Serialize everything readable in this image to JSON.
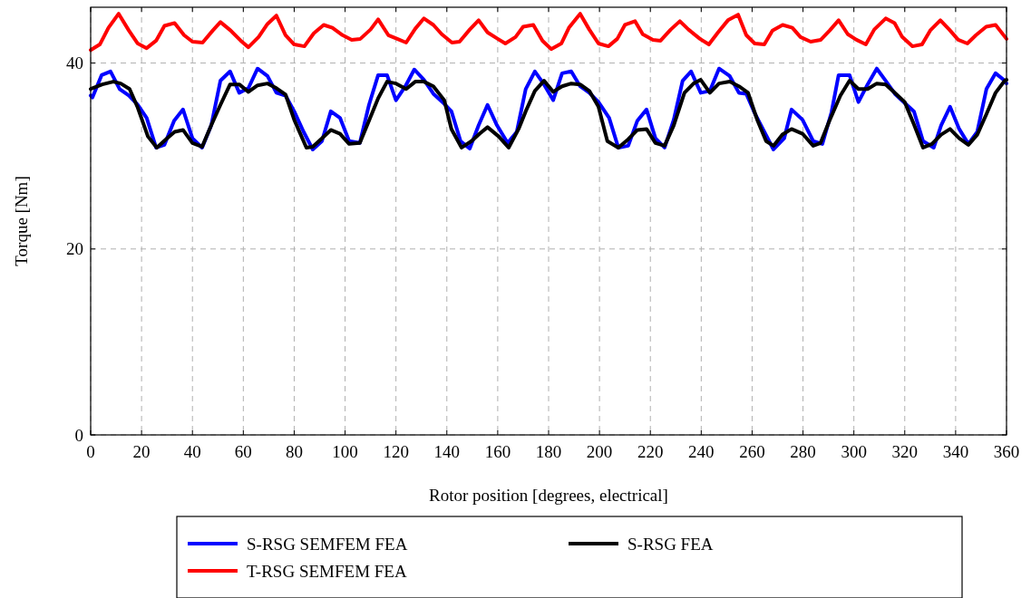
{
  "chart_data": {
    "type": "line",
    "xlabel": "Rotor position [degrees, electrical]",
    "ylabel": "Torque [Nm]",
    "xlim": [
      0,
      360
    ],
    "ylim": [
      0,
      46
    ],
    "xticks": [
      0,
      20,
      40,
      60,
      80,
      100,
      120,
      140,
      160,
      180,
      200,
      220,
      240,
      260,
      280,
      300,
      320,
      340,
      360
    ],
    "yticks": [
      0,
      20,
      40
    ],
    "grid": true,
    "legend": "bottom",
    "marker": "none",
    "line_style": "solid",
    "series": [
      {
        "name": "S-RSG SEMFEM FEA",
        "color": "#0000ff",
        "x": [
          0,
          0.7,
          4.3,
          7.8,
          11.4,
          15,
          18.5,
          22,
          25.7,
          29,
          32.8,
          36.3,
          40,
          43.8,
          47.4,
          51,
          54.8,
          58.4,
          62,
          65.6,
          69.5,
          73,
          76.6,
          80,
          83.7,
          87.3,
          90.9,
          94.4,
          98,
          101.6,
          105.8,
          109.4,
          113,
          116.5,
          120,
          123.7,
          127.2,
          131,
          134.7,
          138.3,
          141.8,
          145.4,
          149,
          152.5,
          156,
          159.7,
          163.9,
          167.5,
          171,
          174.6,
          178.2,
          181.8,
          185.3,
          188.9,
          192.4,
          196,
          199.6,
          203.8,
          207.4,
          211.3,
          214.9,
          218.5,
          222,
          225.6,
          229.2,
          232.7,
          236,
          239.8,
          243.4,
          247,
          251.2,
          254.8,
          257.7,
          261.2,
          264.8,
          268.4,
          272.6,
          275.5,
          279.8,
          284,
          287.6,
          291.2,
          294,
          298.3,
          301.8,
          305.4,
          309,
          312.5,
          316.1,
          320,
          323.6,
          327.2,
          331.4,
          334.3,
          337.8,
          341.4,
          345,
          348.5,
          352.1,
          355.7,
          359.3,
          360
        ],
        "values": [
          36.5,
          36.3,
          38.7,
          39.1,
          37.2,
          36.5,
          35.5,
          34.1,
          30.9,
          31.2,
          33.8,
          35.0,
          31.9,
          30.9,
          33.3,
          38.1,
          39.1,
          36.8,
          37.3,
          39.4,
          38.6,
          36.8,
          36.5,
          34.8,
          32.6,
          30.7,
          31.6,
          34.8,
          34.1,
          31.6,
          31.4,
          35.5,
          38.7,
          38.7,
          36.0,
          37.5,
          39.3,
          38.2,
          36.7,
          35.8,
          34.8,
          31.6,
          30.8,
          33.3,
          35.5,
          33.3,
          31.4,
          32.6,
          37.2,
          39.1,
          37.7,
          36.0,
          38.9,
          39.1,
          37.5,
          36.8,
          35.8,
          34.1,
          30.9,
          31.1,
          33.8,
          35.0,
          31.9,
          30.9,
          33.9,
          38.1,
          39.1,
          36.8,
          37.0,
          39.4,
          38.6,
          36.8,
          36.7,
          34.5,
          32.6,
          30.7,
          31.9,
          35.0,
          33.9,
          31.6,
          31.3,
          34.7,
          38.7,
          38.7,
          35.8,
          37.7,
          39.4,
          38.1,
          36.7,
          35.7,
          34.8,
          31.6,
          30.9,
          33.3,
          35.3,
          32.9,
          31.3,
          32.6,
          37.2,
          38.9,
          38.1,
          37.8
        ]
      },
      {
        "name": "S-RSG FEA",
        "color": "#000000",
        "x": [
          0,
          0.7,
          4.6,
          8.9,
          11.8,
          15.3,
          18.5,
          22.5,
          26,
          29.6,
          33,
          36.3,
          40,
          43.8,
          47.4,
          51,
          54.8,
          58.4,
          62,
          65.6,
          69.5,
          73,
          76.6,
          80,
          84.8,
          87.3,
          90.9,
          94.4,
          98,
          101.6,
          105.8,
          109.4,
          113,
          116.5,
          120,
          124,
          127.6,
          131,
          134.7,
          139,
          141.8,
          145.8,
          149.7,
          152.9,
          156,
          160.4,
          164.3,
          168.2,
          171,
          174.6,
          178.2,
          181.8,
          185.3,
          188.9,
          192.4,
          196,
          199.6,
          203.1,
          207.4,
          211.3,
          214.9,
          218.5,
          222,
          225.6,
          229.2,
          233.4,
          237,
          239.8,
          243.4,
          247,
          251.2,
          254.8,
          258.4,
          262,
          265.5,
          268.4,
          271.9,
          275.5,
          279.8,
          284,
          286.9,
          290.4,
          294.7,
          298.3,
          301.8,
          305.4,
          309,
          312.5,
          316.1,
          320,
          323.6,
          327.2,
          330.7,
          334.3,
          337.8,
          341.4,
          345,
          348.5,
          352.1,
          355.7,
          359.3,
          360
        ],
        "values": [
          37.2,
          37.3,
          37.7,
          38.0,
          37.8,
          37.2,
          35.2,
          32.1,
          30.9,
          31.8,
          32.6,
          32.8,
          31.4,
          31.0,
          33.3,
          35.5,
          37.7,
          37.7,
          36.9,
          37.6,
          37.8,
          37.3,
          36.6,
          33.9,
          30.9,
          31.0,
          31.9,
          32.8,
          32.4,
          31.3,
          31.4,
          33.8,
          36.2,
          38.0,
          37.8,
          37.2,
          38.0,
          38.0,
          37.5,
          36.0,
          32.9,
          30.9,
          31.6,
          32.4,
          33.1,
          32.1,
          30.9,
          32.9,
          34.8,
          37.0,
          38.1,
          36.9,
          37.5,
          37.8,
          37.7,
          37.0,
          35.3,
          31.6,
          30.9,
          31.8,
          32.8,
          32.9,
          31.4,
          31.1,
          33.3,
          36.8,
          37.8,
          38.2,
          36.8,
          37.8,
          38.0,
          37.5,
          36.8,
          33.9,
          31.6,
          31.1,
          32.3,
          32.9,
          32.4,
          31.1,
          31.4,
          33.8,
          36.5,
          38.1,
          37.2,
          37.2,
          37.8,
          37.7,
          36.8,
          35.8,
          33.4,
          30.9,
          31.3,
          32.3,
          32.9,
          31.9,
          31.2,
          32.3,
          34.5,
          36.8,
          38.1,
          38.2
        ]
      },
      {
        "name": "T-RSG SEMFEM FEA",
        "color": "#ff0000",
        "x": [
          0,
          3.6,
          7,
          11,
          15,
          18.5,
          22,
          25.7,
          29,
          33,
          36.7,
          40,
          44,
          48,
          51,
          55,
          59,
          62,
          66,
          69.5,
          73,
          76.6,
          80,
          84,
          87.7,
          91.6,
          95,
          99,
          102.6,
          106,
          110,
          113,
          117,
          120.5,
          124,
          127.6,
          131,
          134.7,
          138,
          142,
          145,
          149,
          152.5,
          156,
          160,
          163,
          167,
          170,
          174,
          177.6,
          181,
          185,
          188,
          192.4,
          196,
          199.6,
          203.5,
          207,
          210,
          214,
          217,
          221,
          224,
          228,
          231.6,
          235,
          239.5,
          243,
          246.6,
          250.5,
          254.5,
          257.7,
          261,
          264.8,
          268,
          272,
          275.8,
          279,
          283,
          287,
          290.5,
          294,
          297.6,
          301,
          304.7,
          308,
          312.5,
          316,
          319,
          323,
          326.8,
          330,
          334,
          337.5,
          341,
          344.6,
          348,
          352,
          355.7,
          360
        ],
        "values": [
          41.4,
          42.0,
          43.8,
          45.3,
          43.5,
          42.1,
          41.6,
          42.4,
          44.0,
          44.3,
          43.0,
          42.3,
          42.2,
          43.5,
          44.4,
          43.5,
          42.4,
          41.7,
          42.8,
          44.2,
          45.1,
          43.0,
          42.0,
          41.8,
          43.2,
          44.1,
          43.8,
          43.0,
          42.5,
          42.6,
          43.6,
          44.7,
          43.0,
          42.6,
          42.2,
          43.7,
          44.8,
          44.1,
          43.1,
          42.2,
          42.3,
          43.6,
          44.6,
          43.3,
          42.6,
          42.1,
          42.8,
          43.9,
          44.1,
          42.4,
          41.5,
          42.1,
          43.8,
          45.3,
          43.6,
          42.1,
          41.8,
          42.6,
          44.1,
          44.5,
          43.1,
          42.5,
          42.4,
          43.6,
          44.5,
          43.6,
          42.6,
          42.0,
          43.3,
          44.6,
          45.2,
          43.0,
          42.1,
          42.0,
          43.5,
          44.1,
          43.8,
          42.8,
          42.3,
          42.5,
          43.5,
          44.6,
          43.1,
          42.5,
          42.0,
          43.6,
          44.8,
          44.3,
          42.8,
          41.8,
          42.0,
          43.5,
          44.6,
          43.6,
          42.5,
          42.1,
          43.0,
          43.9,
          44.1,
          42.6
        ]
      }
    ]
  }
}
